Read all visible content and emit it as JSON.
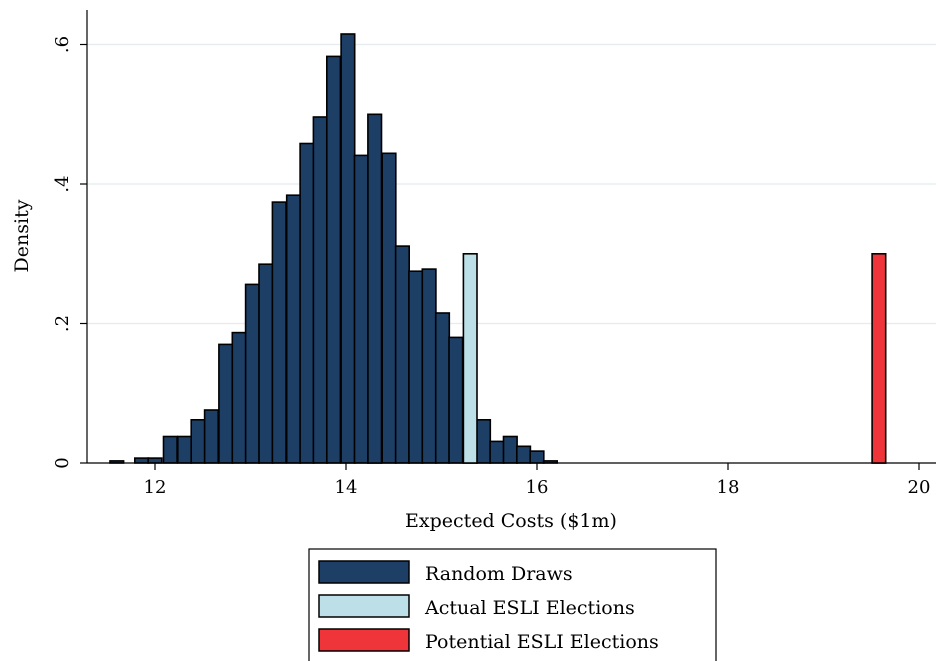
{
  "chart_data": {
    "type": "bar",
    "title": "",
    "xlabel": "Expected Costs ($1m)",
    "ylabel": "Density",
    "xlim": [
      11.4,
      20.2
    ],
    "ylim": [
      0,
      0.64
    ],
    "x_ticks": [
      {
        "value": 12,
        "label": "12"
      },
      {
        "value": 14,
        "label": "14"
      },
      {
        "value": 16,
        "label": "16"
      },
      {
        "value": 18,
        "label": "18"
      },
      {
        "value": 20,
        "label": "20"
      }
    ],
    "y_ticks": [
      {
        "value": 0,
        "label": "0"
      },
      {
        "value": 0.2,
        "label": ".2"
      },
      {
        "value": 0.4,
        "label": ".4"
      },
      {
        "value": 0.6,
        "label": ".6"
      }
    ],
    "grid": "horizontal",
    "legend_position": "bottom",
    "bin_width": 0.142,
    "series": [
      {
        "name": "Random Draws",
        "color": "#1d3f66",
        "bars": [
          {
            "x": 11.6,
            "y": 0.003
          },
          {
            "x": 11.86,
            "y": 0.007
          },
          {
            "x": 12.0,
            "y": 0.007
          },
          {
            "x": 12.16,
            "y": 0.038
          },
          {
            "x": 12.31,
            "y": 0.038
          },
          {
            "x": 12.45,
            "y": 0.062
          },
          {
            "x": 12.59,
            "y": 0.076
          },
          {
            "x": 12.74,
            "y": 0.17
          },
          {
            "x": 12.88,
            "y": 0.187
          },
          {
            "x": 13.02,
            "y": 0.256
          },
          {
            "x": 13.16,
            "y": 0.285
          },
          {
            "x": 13.3,
            "y": 0.374
          },
          {
            "x": 13.45,
            "y": 0.384
          },
          {
            "x": 13.59,
            "y": 0.458
          },
          {
            "x": 13.73,
            "y": 0.496
          },
          {
            "x": 13.87,
            "y": 0.583
          },
          {
            "x": 14.02,
            "y": 0.615
          },
          {
            "x": 14.16,
            "y": 0.441
          },
          {
            "x": 14.3,
            "y": 0.5
          },
          {
            "x": 14.45,
            "y": 0.444
          },
          {
            "x": 14.59,
            "y": 0.311
          },
          {
            "x": 14.73,
            "y": 0.275
          },
          {
            "x": 14.87,
            "y": 0.278
          },
          {
            "x": 15.01,
            "y": 0.215
          },
          {
            "x": 15.15,
            "y": 0.18
          },
          {
            "x": 15.44,
            "y": 0.062
          },
          {
            "x": 15.58,
            "y": 0.031
          },
          {
            "x": 15.72,
            "y": 0.038
          },
          {
            "x": 15.86,
            "y": 0.024
          },
          {
            "x": 16.0,
            "y": 0.017
          },
          {
            "x": 16.14,
            "y": 0.003
          }
        ]
      },
      {
        "name": "Actual ESLI Elections",
        "color": "#bde0e8",
        "bars": [
          {
            "x": 15.3,
            "y": 0.3
          }
        ]
      },
      {
        "name": "Potential ESLI Elections",
        "color": "#f0353a",
        "bars": [
          {
            "x": 19.58,
            "y": 0.3
          }
        ]
      }
    ]
  }
}
